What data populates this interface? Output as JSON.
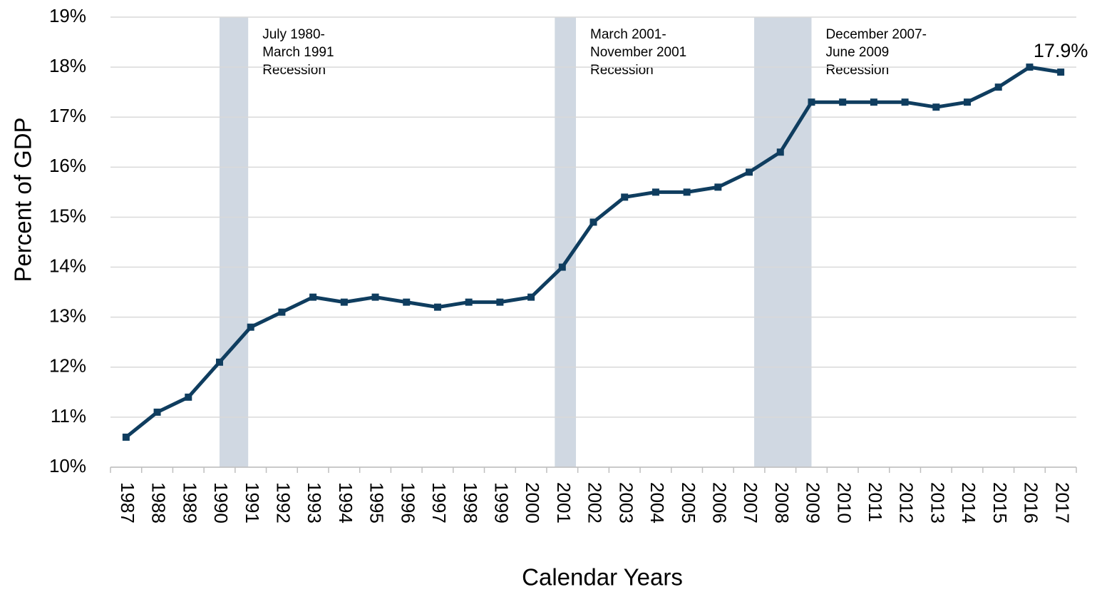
{
  "chart_data": {
    "type": "line",
    "y_axis_label": "Percent of GDP",
    "x_axis_label": "Calendar Years",
    "categories": [
      "1987",
      "1988",
      "1989",
      "1990",
      "1991",
      "1992",
      "1993",
      "1994",
      "1995",
      "1996",
      "1997",
      "1998",
      "1999",
      "2000",
      "2001",
      "2002",
      "2003",
      "2004",
      "2005",
      "2006",
      "2007",
      "2008",
      "2009",
      "2010",
      "2011",
      "2012",
      "2013",
      "2014",
      "2015",
      "2016",
      "2017"
    ],
    "values": [
      10.6,
      11.1,
      11.4,
      12.1,
      12.8,
      13.1,
      13.4,
      13.3,
      13.4,
      13.3,
      13.2,
      13.3,
      13.3,
      13.4,
      14.0,
      14.9,
      15.4,
      15.5,
      15.5,
      15.6,
      15.9,
      16.3,
      17.3,
      17.3,
      17.3,
      17.3,
      17.2,
      17.3,
      17.6,
      18.0,
      17.9
    ],
    "value_labels": [
      null,
      null,
      null,
      null,
      null,
      null,
      null,
      null,
      null,
      null,
      null,
      null,
      null,
      null,
      null,
      null,
      null,
      null,
      null,
      null,
      null,
      null,
      null,
      null,
      null,
      null,
      null,
      null,
      null,
      null,
      "17.9%"
    ],
    "color": "#0f3d5f",
    "ylim": [
      10,
      19
    ],
    "yticks": [
      {
        "value": 10,
        "label": "10%"
      },
      {
        "value": 11,
        "label": "11%"
      },
      {
        "value": 12,
        "label": "12%"
      },
      {
        "value": 13,
        "label": "13%"
      },
      {
        "value": 14,
        "label": "14%"
      },
      {
        "value": 15,
        "label": "15%"
      },
      {
        "value": 16,
        "label": "16%"
      },
      {
        "value": 17,
        "label": "17%"
      },
      {
        "value": 18,
        "label": "18%"
      },
      {
        "value": 19,
        "label": "19%"
      }
    ],
    "grid": true,
    "shaded_spans": [
      {
        "start": 1990,
        "end": 1990.92,
        "color": "#d0d8e2",
        "label": [
          "July 1980-",
          "March 1991",
          "Recession"
        ]
      },
      {
        "start": 2000.76,
        "end": 2001.44,
        "color": "#d0d8e2",
        "label": [
          "March 2001-",
          "November 2001",
          "Recession"
        ]
      },
      {
        "start": 2007.16,
        "end": 2009.0,
        "color": "#d0d8e2",
        "label": [
          "December 2007-",
          "June 2009",
          "Recession"
        ]
      }
    ]
  }
}
